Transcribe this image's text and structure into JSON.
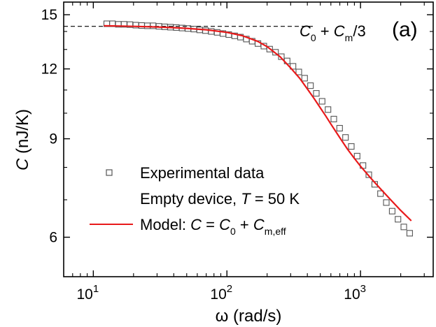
{
  "chart_data": {
    "type": "scatter",
    "panel_label": "(a)",
    "xlabel": {
      "symbol": "ω",
      "unit": " (rad/s)"
    },
    "ylabel": {
      "symbol": "C",
      "unit": " (nJ/K)"
    },
    "x_scale": "log",
    "y_scale": "log",
    "xlim": [
      6,
      3500
    ],
    "ylim": [
      5.1,
      15.8
    ],
    "x_major_ticks": [
      10,
      100,
      1000
    ],
    "x_tick_labels": [
      {
        "base": "10",
        "exp": "1"
      },
      {
        "base": "10",
        "exp": "2"
      },
      {
        "base": "10",
        "exp": "3"
      }
    ],
    "y_major_ticks": [
      6,
      9,
      12,
      15
    ],
    "y_tick_labels": [
      "6",
      "9",
      "12",
      "15"
    ],
    "grid": false,
    "reference_line": {
      "y": 14.3,
      "style": "dashed",
      "x_end": 450,
      "label": {
        "p1": "C",
        "s1": "0",
        "p2": " + ",
        "p3": "C",
        "s2": "m",
        "p4": "/3"
      }
    },
    "legend": {
      "placement": "lower-left",
      "experimental": "Experimental data",
      "empty_device": {
        "t1": "Empty device, ",
        "t2": "T",
        "t3": " = 50 K"
      },
      "model": {
        "t1": "Model: ",
        "t2": "C",
        "t3": " = ",
        "t4": "C",
        "s1": "0",
        "t5": " + ",
        "t6": "C",
        "s2": "m,eff"
      }
    },
    "series": [
      {
        "name": "Experimental data",
        "kind": "scatter",
        "marker": "open-square",
        "color": "#555555",
        "x": [
          12.6,
          13.9,
          15.4,
          17.0,
          18.8,
          20.8,
          23.0,
          25.4,
          28.0,
          31.0,
          34.2,
          37.8,
          41.8,
          46.2,
          51.1,
          56.5,
          62.5,
          69.1,
          76.4,
          84.5,
          93.4,
          103.3,
          114.2,
          126.3,
          139.7,
          154.5,
          170.8,
          188.9,
          208.9,
          231.0,
          255.4,
          282.4,
          312.3,
          345.3,
          381.8,
          422.2,
          466.9,
          516.2,
          570.9,
          631.2,
          698.0,
          771.8,
          853.5,
          943.8,
          1043.6,
          1154.0,
          1276.1,
          1411.0,
          1560.3,
          1725.4,
          1907.9,
          2109.7,
          2332.9
        ],
        "y": [
          14.45,
          14.45,
          14.42,
          14.42,
          14.4,
          14.37,
          14.35,
          14.33,
          14.33,
          14.3,
          14.27,
          14.25,
          14.23,
          14.2,
          14.17,
          14.14,
          14.09,
          14.05,
          14.0,
          13.95,
          13.88,
          13.82,
          13.75,
          13.68,
          13.57,
          13.45,
          13.32,
          13.18,
          13.02,
          12.85,
          12.62,
          12.4,
          12.13,
          11.85,
          11.55,
          11.2,
          10.85,
          10.5,
          10.15,
          9.76,
          9.4,
          9.05,
          8.72,
          8.38,
          8.06,
          7.76,
          7.46,
          7.18,
          6.92,
          6.68,
          6.46,
          6.26,
          6.1
        ]
      },
      {
        "name": "Model: C = C0 + Cm,eff",
        "kind": "line",
        "color": "#e8191a",
        "x": [
          12,
          15,
          20,
          30,
          40,
          50,
          70,
          100,
          130,
          170,
          200,
          250,
          300,
          350,
          400,
          450,
          500,
          550,
          600,
          700,
          800,
          900,
          1000,
          1200,
          1400,
          1700,
          2000,
          2400
        ],
        "y": [
          14.33,
          14.32,
          14.3,
          14.26,
          14.22,
          14.18,
          14.1,
          13.95,
          13.76,
          13.44,
          13.15,
          12.62,
          12.05,
          11.55,
          11.05,
          10.62,
          10.22,
          9.88,
          9.56,
          9.04,
          8.62,
          8.3,
          8.04,
          7.64,
          7.34,
          6.98,
          6.7,
          6.42
        ]
      }
    ]
  }
}
